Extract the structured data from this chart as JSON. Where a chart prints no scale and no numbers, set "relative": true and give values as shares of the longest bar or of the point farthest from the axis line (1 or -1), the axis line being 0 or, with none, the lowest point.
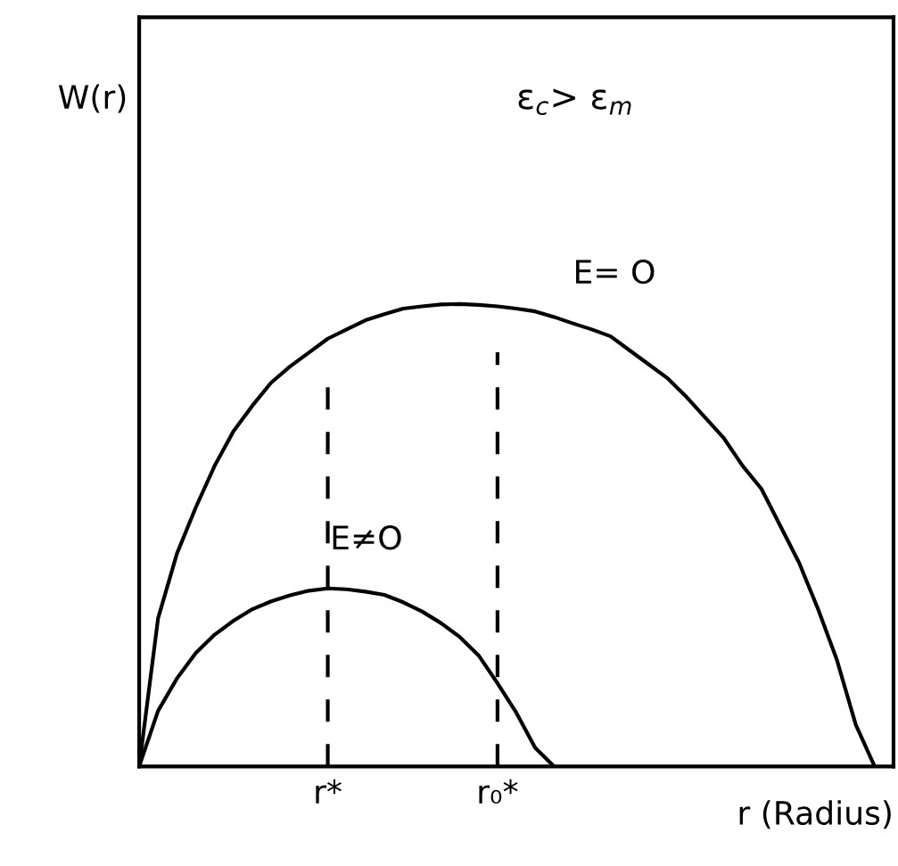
{
  "chart_data": {
    "type": "line",
    "relative": true,
    "xlabel": "r (Radius)",
    "annotations": [
      "ε$_{c}$> ε$_{m}$",
      "W(r)"
    ],
    "categories": [
      null,
      null,
      null,
      null,
      null,
      null,
      null,
      null,
      null,
      null,
      "r*",
      null,
      null,
      null,
      null,
      null,
      null,
      null,
      null,
      "r₀*",
      null,
      null,
      null,
      null,
      null,
      null,
      null,
      null,
      null,
      null,
      null,
      null,
      null,
      null,
      null,
      null,
      null,
      null,
      null,
      null,
      null
    ],
    "line_style": "solid",
    "ref_lines": [
      {
        "axis": "x",
        "value": "r*",
        "color": "#000000",
        "line_style": "dashed"
      },
      {
        "axis": "x",
        "value": "r₀*",
        "color": "#000000",
        "line_style": "dashed"
      }
    ],
    "series": [
      {
        "name": "E= O",
        "color": "#000000",
        "values": [
          0,
          0.32,
          0.46,
          0.56,
          0.65,
          0.725,
          0.78,
          0.83,
          0.865,
          0.895,
          0.925,
          0.945,
          0.965,
          0.978,
          0.99,
          0.995,
          0.999,
          1,
          0.998,
          0.995,
          0.99,
          0.984,
          0.972,
          0.958,
          0.945,
          0.93,
          0.9,
          0.87,
          0.84,
          0.8,
          0.755,
          0.71,
          0.65,
          0.6,
          0.52,
          0.44,
          0.34,
          0.23,
          0.09,
          0,
          null
        ]
      },
      {
        "name": "E≠O",
        "color": "#000000",
        "values": [
          0,
          0.12,
          0.19,
          0.245,
          0.285,
          0.315,
          0.34,
          0.357,
          0.37,
          0.38,
          0.385,
          0.383,
          0.378,
          0.371,
          0.355,
          0.335,
          0.31,
          0.28,
          0.24,
          0.18,
          0.116,
          0.04,
          0,
          null,
          null,
          null,
          null,
          null,
          null,
          null,
          null,
          null,
          null,
          null,
          null,
          null,
          null,
          null,
          null,
          null,
          null
        ]
      }
    ]
  }
}
